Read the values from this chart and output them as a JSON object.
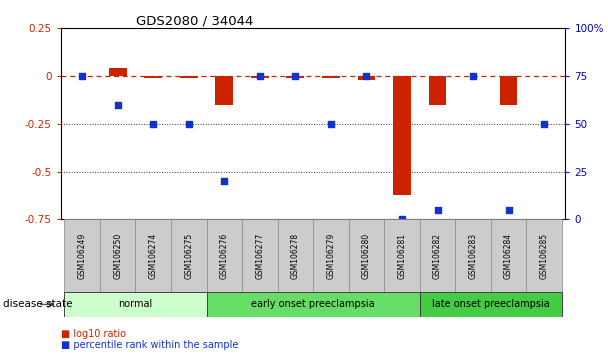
{
  "title": "GDS2080 / 34044",
  "samples": [
    "GSM106249",
    "GSM106250",
    "GSM106274",
    "GSM106275",
    "GSM106276",
    "GSM106277",
    "GSM106278",
    "GSM106279",
    "GSM106280",
    "GSM106281",
    "GSM106282",
    "GSM106283",
    "GSM106284",
    "GSM106285"
  ],
  "log10_ratio": [
    0.0,
    0.04,
    -0.01,
    -0.01,
    -0.15,
    -0.01,
    -0.01,
    -0.01,
    -0.02,
    -0.62,
    -0.15,
    0.0,
    -0.15,
    0.0
  ],
  "percentile_rank": [
    75,
    60,
    50,
    50,
    20,
    75,
    75,
    50,
    75,
    0,
    5,
    75,
    5,
    50
  ],
  "groups": [
    {
      "label": "normal",
      "start": 0,
      "end": 3,
      "color": "#ccffcc"
    },
    {
      "label": "early onset preeclampsia",
      "start": 4,
      "end": 9,
      "color": "#66dd66"
    },
    {
      "label": "late onset preeclampsia",
      "start": 10,
      "end": 13,
      "color": "#44cc44"
    }
  ],
  "ylim_left": [
    -0.75,
    0.25
  ],
  "ylim_right": [
    0,
    100
  ],
  "yticks_left": [
    -0.75,
    -0.5,
    -0.25,
    0.0,
    0.25
  ],
  "yticks_right": [
    0,
    25,
    50,
    75,
    100
  ],
  "ytick_labels_left": [
    "-0.75",
    "-0.5",
    "-0.25",
    "0",
    "0.25"
  ],
  "ytick_labels_right": [
    "0",
    "25",
    "50",
    "75",
    "100%"
  ],
  "hline_y": 0.0,
  "dotted_lines": [
    -0.25,
    -0.5
  ],
  "bar_color": "#cc2200",
  "scatter_color": "#1133cc",
  "legend_items": [
    "log10 ratio",
    "percentile rank within the sample"
  ],
  "bg_color": "#ffffff",
  "plot_bg": "#ffffff",
  "xlabel_color": "#cc2200",
  "ylabel_right_color": "#0000cc",
  "disease_label": "disease state",
  "group_normal_color": "#ccffcc",
  "group_early_color": "#66dd66",
  "group_late_color": "#44cc44",
  "sample_box_color": "#cccccc",
  "sample_box_edge": "#888888"
}
